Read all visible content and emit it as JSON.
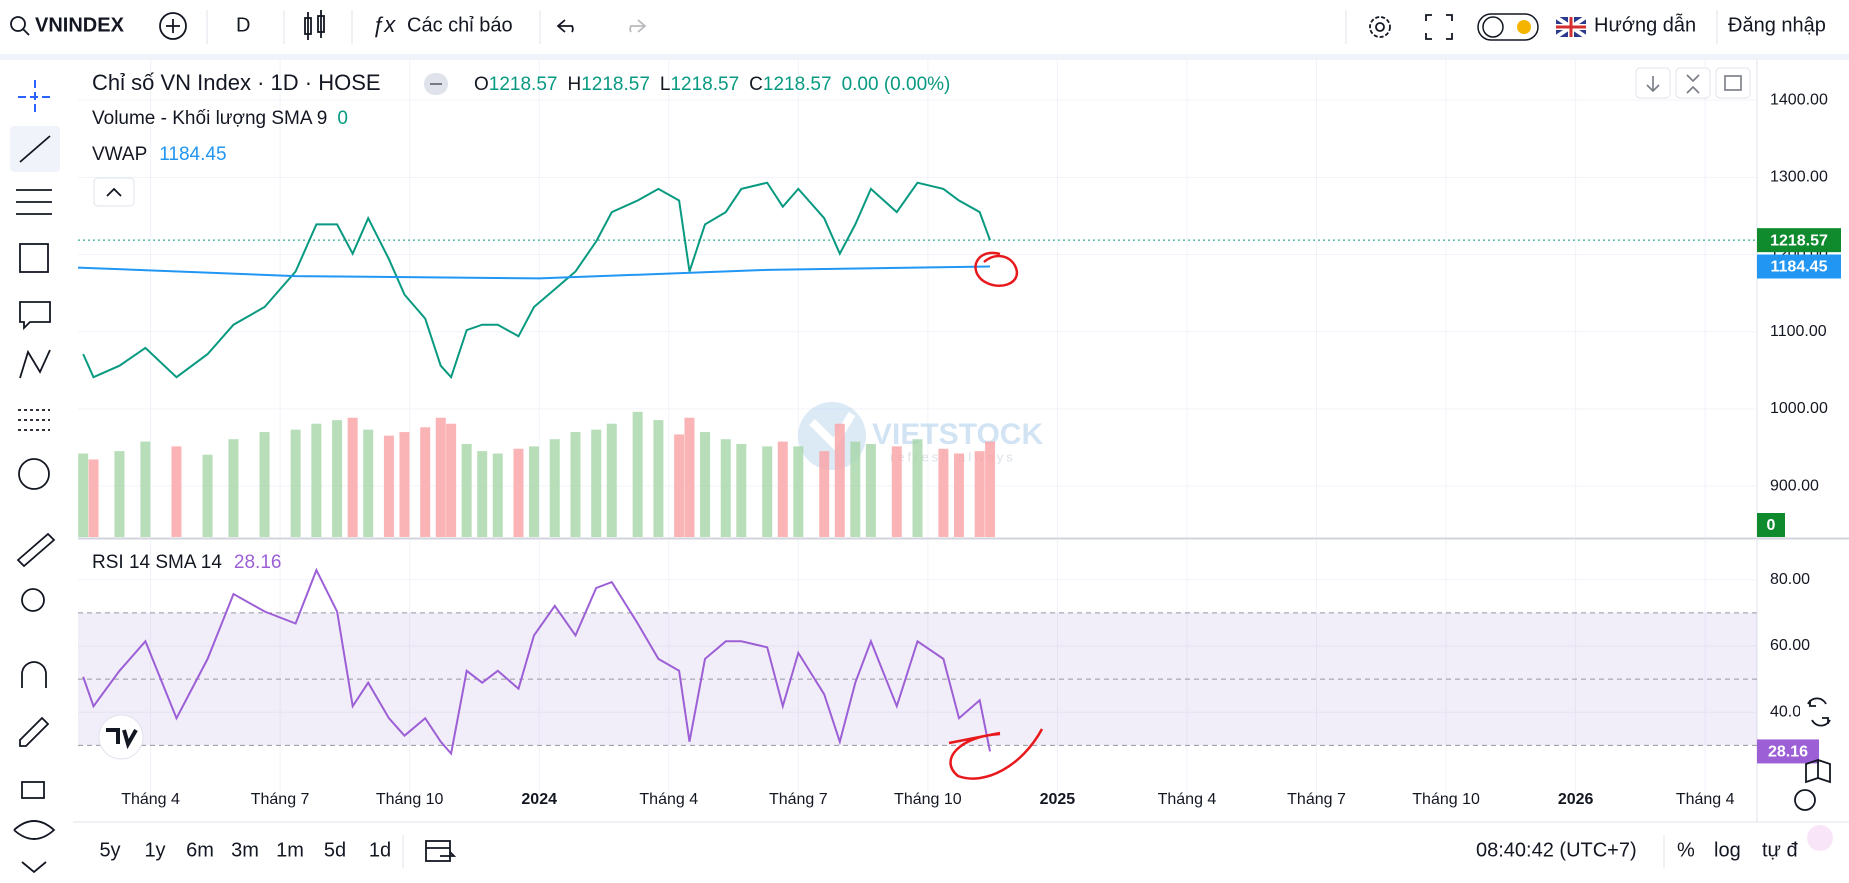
{
  "toolbar": {
    "symbol": "VNINDEX",
    "interval": "D",
    "indicators": "Các chỉ báo",
    "guide": "Hướng dẫn",
    "login": "Đăng nhập"
  },
  "legend": {
    "title": "Chỉ số VN Index · 1D · HOSE",
    "ohlc": [
      {
        "label": "O",
        "value": 1218.57
      },
      {
        "label": "H",
        "value": 1218.57
      },
      {
        "label": "L",
        "value": 1218.57
      },
      {
        "label": "C",
        "value": 1218.57
      }
    ],
    "change": "0.00 (0.00%)"
  },
  "watermark": {
    "brand": "VIETSTOCK",
    "tagline": "refresh always"
  },
  "chart_data": [
    {
      "type": "line",
      "color": "#089981",
      "x": [
        2023.12,
        2023.14,
        2023.19,
        2023.24,
        2023.3,
        2023.36,
        2023.41,
        2023.47,
        2023.53,
        2023.57,
        2023.61,
        2023.64,
        2023.67,
        2023.71,
        2023.74,
        2023.78,
        2023.81,
        2023.83,
        2023.86,
        2023.89,
        2023.92,
        2023.96,
        2023.99,
        2024.03,
        2024.07,
        2024.11,
        2024.14,
        2024.19,
        2024.23,
        2024.27,
        2024.29,
        2024.32,
        2024.36,
        2024.39,
        2024.44,
        2024.47,
        2024.5,
        2024.55,
        2024.58,
        2024.61,
        2024.64,
        2024.69,
        2024.73,
        2024.78,
        2024.81,
        2024.85,
        2024.87
      ],
      "values": [
        1071,
        1041,
        1056,
        1079,
        1041,
        1071,
        1109,
        1132,
        1178,
        1239,
        1239,
        1201,
        1247,
        1194,
        1148,
        1117,
        1056,
        1041,
        1102,
        1109,
        1109,
        1094,
        1132,
        1155,
        1178,
        1217,
        1255,
        1270,
        1285,
        1270,
        1178,
        1239,
        1255,
        1285,
        1293,
        1262,
        1285,
        1247,
        1201,
        1239,
        1285,
        1255,
        1293,
        1285,
        1270,
        1255,
        1218.57
      ],
      "overlays": [
        {
          "name": "VWAP",
          "color": "#2196f3",
          "x": [
            2023.11,
            2023.53,
            2024.0,
            2024.44,
            2024.87
          ],
          "values": [
            1183,
            1172,
            1169,
            1180,
            1184.45
          ]
        }
      ],
      "volume": {
        "name": "Volume - Khối lượng SMA 9",
        "sma": 0,
        "ylim": [
          0,
          4000
        ],
        "values": [
          700,
          650,
          720,
          800,
          760,
          690,
          820,
          880,
          900,
          950,
          980,
          1000,
          900,
          850,
          880,
          920,
          1000,
          950,
          780,
          720,
          700,
          740,
          760,
          820,
          880,
          900,
          950,
          1050,
          980,
          860,
          1000,
          880,
          820,
          780,
          760,
          800,
          760,
          720,
          950,
          800,
          780,
          760,
          820,
          740,
          700,
          720,
          800
        ]
      },
      "xlim": [
        2023.11,
        2026.35
      ],
      "ylim": [
        834,
        1452
      ],
      "yticks": [
        {
          "value": 900,
          "label": "900.00"
        },
        {
          "value": 1000,
          "label": "1000.00"
        },
        {
          "value": 1100,
          "label": "1100.00"
        },
        {
          "value": 1200,
          "label": "1200.00"
        },
        {
          "value": 1300,
          "label": "1300.00"
        },
        {
          "value": 1400,
          "label": "1400.00"
        }
      ],
      "grid": true
    },
    {
      "type": "line",
      "title": "RSI 14 SMA 14",
      "color": "#9c5fd6",
      "x": [
        2023.12,
        2023.14,
        2023.19,
        2023.24,
        2023.3,
        2023.36,
        2023.41,
        2023.47,
        2023.53,
        2023.57,
        2023.61,
        2023.64,
        2023.67,
        2023.71,
        2023.74,
        2023.78,
        2023.81,
        2023.83,
        2023.86,
        2023.89,
        2023.92,
        2023.96,
        2023.99,
        2024.03,
        2024.07,
        2024.11,
        2024.14,
        2024.19,
        2024.23,
        2024.27,
        2024.29,
        2024.32,
        2024.36,
        2024.39,
        2024.44,
        2024.47,
        2024.5,
        2024.55,
        2024.58,
        2024.61,
        2024.64,
        2024.69,
        2024.73,
        2024.78,
        2024.81,
        2024.85,
        2024.87
      ],
      "values": [
        50.7,
        41.8,
        52.5,
        61.4,
        38.2,
        56.1,
        75.7,
        70.4,
        66.8,
        82.9,
        70.4,
        41.8,
        48.9,
        38.2,
        32.9,
        38.2,
        31.1,
        27.5,
        52.5,
        48.9,
        52.5,
        47.1,
        63.2,
        72.1,
        63.2,
        77.5,
        79.3,
        66.8,
        56.1,
        52.5,
        31.1,
        56.1,
        61.4,
        61.4,
        59.6,
        41.8,
        57.9,
        45.4,
        31.1,
        48.9,
        61.4,
        41.8,
        61.4,
        56.1,
        38.2,
        43.6,
        28.16
      ],
      "levels": [
        30,
        50,
        70
      ],
      "band": [
        30,
        70
      ],
      "xlim": [
        2023.11,
        2026.35
      ],
      "ylim": [
        15,
        92
      ],
      "yticks": [
        {
          "value": 40,
          "label": "40.00"
        },
        {
          "value": 60,
          "label": "60.00"
        },
        {
          "value": 80,
          "label": "80.00"
        }
      ],
      "xticks": [
        {
          "value": 2023.25,
          "label": "Tháng 4"
        },
        {
          "value": 2023.5,
          "label": "Tháng 7"
        },
        {
          "value": 2023.75,
          "label": "Tháng 10"
        },
        2024,
        {
          "value": 2024.25,
          "label": "Tháng 4"
        },
        {
          "value": 2024.5,
          "label": "Tháng 7"
        },
        {
          "value": 2024.75,
          "label": "Tháng 10"
        },
        2025,
        {
          "value": 2025.25,
          "label": "Tháng 4"
        },
        {
          "value": 2025.5,
          "label": "Tháng 7"
        },
        {
          "value": 2025.75,
          "label": "Tháng 10"
        },
        2026,
        {
          "value": 2026.25,
          "label": "Tháng 4"
        }
      ],
      "grid": true
    }
  ],
  "bottom_bar": {
    "ranges": [
      "5y",
      "1y",
      "6m",
      "3m",
      "1m",
      "5d",
      "1d"
    ],
    "time": "08:40:42 (UTC+7)",
    "percent": "%",
    "log": "log",
    "auto": "tự đ"
  }
}
